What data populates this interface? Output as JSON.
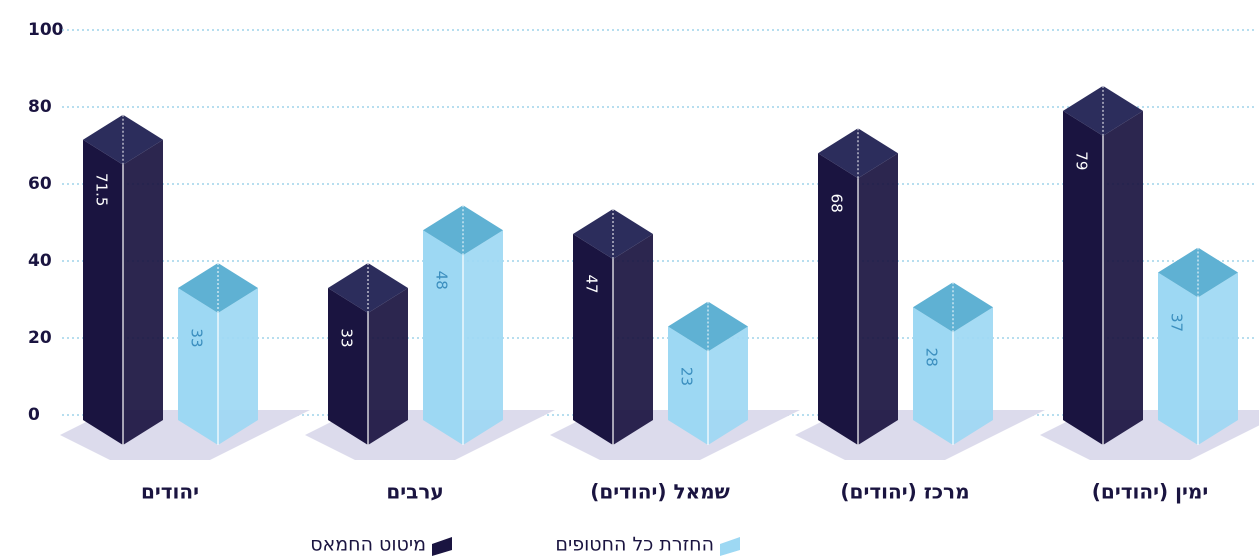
{
  "chart_data": {
    "type": "bar3d",
    "categories": [
      "יהודים",
      "ערבים",
      "שמאל (יהודים)",
      "מרכז (יהודים)",
      "ימין (יהודים)"
    ],
    "series": [
      {
        "name": "מיטוט החמאס",
        "color": "#1a1440",
        "top_color": "#2c2d5c",
        "values": [
          71.5,
          33,
          47,
          68,
          79
        ]
      },
      {
        "name": "החזרת כל החטופים",
        "color": "#9dd8f3",
        "top_color": "#5fb1d3",
        "values": [
          33,
          48,
          23,
          28,
          37
        ]
      }
    ],
    "ylim": [
      0,
      100
    ],
    "yticks": [
      0,
      20,
      40,
      60,
      80,
      100
    ],
    "grid": true
  }
}
